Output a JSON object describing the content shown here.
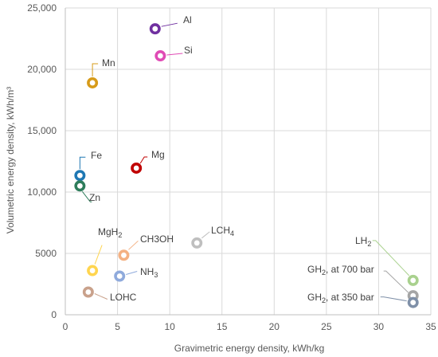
{
  "chart_data": {
    "type": "scatter",
    "title": "",
    "xlabel": "Gravimetric energy density, kWh/kg",
    "ylabel": "Volumetric energy density, kWh/m³",
    "xlim": [
      0,
      35
    ],
    "ylim": [
      0,
      25000
    ],
    "x_ticks": [
      "0",
      "5",
      "10",
      "15",
      "20",
      "25",
      "30",
      "35"
    ],
    "y_ticks": [
      "0",
      "5000",
      "10,000",
      "15,000",
      "20,000",
      "25,000"
    ],
    "grid": "major gridlines on both axes",
    "legend": "none",
    "points": [
      {
        "label": "Al",
        "sub": "",
        "x": 8.6,
        "y": 23300,
        "color": "#7030a0"
      },
      {
        "label": "Si",
        "sub": "",
        "x": 9.1,
        "y": 21100,
        "color": "#e04bb5"
      },
      {
        "label": "Mn",
        "sub": "",
        "x": 2.6,
        "y": 18900,
        "color": "#d79b19"
      },
      {
        "label": "Mg",
        "sub": "",
        "x": 6.8,
        "y": 11950,
        "color": "#c00000"
      },
      {
        "label": "Fe",
        "sub": "",
        "x": 1.4,
        "y": 11350,
        "color": "#1f78b4"
      },
      {
        "label": "Zn",
        "sub": "",
        "x": 1.4,
        "y": 10500,
        "color": "#2e7d5b"
      },
      {
        "label": "MgH",
        "sub": "2",
        "x": 2.6,
        "y": 3600,
        "color": "#ffd54f"
      },
      {
        "label": "CH3OH",
        "sub": "",
        "x": 5.6,
        "y": 4850,
        "color": "#f4b183"
      },
      {
        "label": "LCH",
        "sub": "4",
        "x": 12.6,
        "y": 5850,
        "color": "#bfbfbf"
      },
      {
        "label": "NH",
        "sub": "3",
        "x": 5.2,
        "y": 3150,
        "color": "#8faadc"
      },
      {
        "label": "LOHC",
        "sub": "",
        "x": 2.2,
        "y": 1850,
        "color": "#c9a18b"
      },
      {
        "label": "LH",
        "sub": "2",
        "x": 33.3,
        "y": 2800,
        "color": "#a9d18e"
      },
      {
        "label": "GH",
        "sub": "2",
        "suffix": ", at 700 bar",
        "x": 33.3,
        "y": 1550,
        "color": "#a5a5a5"
      },
      {
        "label": "GH",
        "sub": "2",
        "suffix": ", at 350 bar",
        "x": 33.3,
        "y": 1000,
        "color": "#7f90a8"
      }
    ]
  }
}
